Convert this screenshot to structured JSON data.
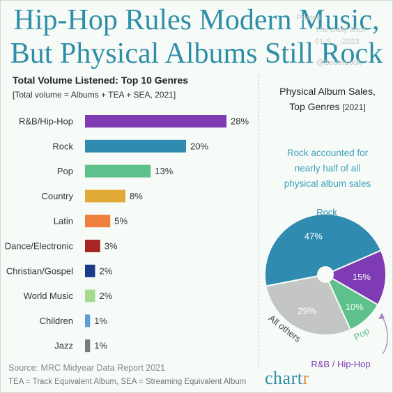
{
  "title_line1": "Hip-Hop Rules Modern Music,",
  "title_line2": "But Physical Albums Still Rock",
  "watermark": {
    "line1": "Posted",
    "line2": "The Daily Shot",
    "line3": "01-S__-2023",
    "line4": "@SoberLook"
  },
  "left_heading": "Total Volume Listened: Top 10 Genres",
  "left_subheading": "[Total volume = Albums + TEA + SEA, 2021]",
  "right_heading_line1": "Physical Album Sales,",
  "right_heading_line2": "Top Genres",
  "right_heading_year": "[2021]",
  "callout": [
    "Rock accounted for",
    "nearly half of all",
    "physical album sales"
  ],
  "source": "Source: MRC Midyear Data Report 2021",
  "footnote": "TEA = Track Equivalent Album, SEA = Streaming Equivalent Album",
  "logo": {
    "main": "chart",
    "accent": "r"
  },
  "colors": {
    "title": "#2e8ea8",
    "accent_text": "#3fa0ba"
  },
  "chart_data": [
    {
      "type": "bar",
      "orientation": "horizontal",
      "categories": [
        "R&B/Hip-Hop",
        "Rock",
        "Pop",
        "Country",
        "Latin",
        "Dance/Electronic",
        "Christian/Gospel",
        "World Music",
        "Children",
        "Jazz"
      ],
      "values": [
        28,
        20,
        13,
        8,
        5,
        3,
        2,
        2,
        1,
        1
      ],
      "value_labels": [
        "28%",
        "20%",
        "13%",
        "8%",
        "5%",
        "3%",
        "2%",
        "2%",
        "1%",
        "1%"
      ],
      "colors": [
        "#7e3bb3",
        "#2f8bb0",
        "#5ec08a",
        "#e0aa35",
        "#ee7f3c",
        "#a82525",
        "#1b3a8a",
        "#a5d98e",
        "#5b9fd6",
        "#7a7a7a"
      ],
      "unit": "%",
      "grid": false
    },
    {
      "type": "pie",
      "labels": [
        "Rock",
        "R&B / Hip-Hop",
        "Pop",
        "All others"
      ],
      "values": [
        47,
        15,
        10,
        29
      ],
      "value_labels": [
        "47%",
        "15%",
        "10%",
        "29%"
      ],
      "colors": [
        "#2f8bb0",
        "#7e3bb3",
        "#5ec08a",
        "#c4c6c4"
      ],
      "label_colors": [
        "#2f8bb0",
        "#7e3bb3",
        "#5ec08a",
        "#444444"
      ],
      "donut_hole": true
    }
  ]
}
